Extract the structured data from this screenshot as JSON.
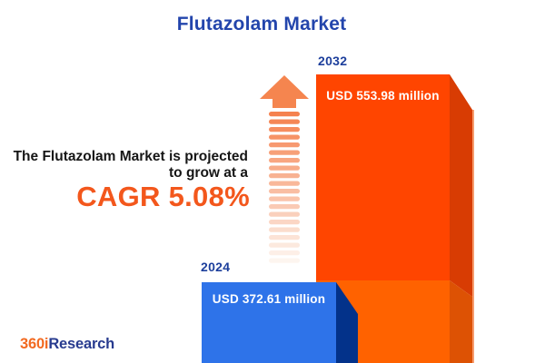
{
  "header": {
    "title": "Flutazolam Market"
  },
  "bars": {
    "y2032": {
      "year": "2032",
      "value_label": "USD 553.98 million"
    },
    "y2024": {
      "year": "2024",
      "value_label": "USD 372.61 million"
    }
  },
  "annotation": {
    "line1": "The Flutazolam Market is projected",
    "line2": "to grow at a",
    "cagr": "CAGR 5.08%"
  },
  "logo": {
    "part1": "360i",
    "part2": "Research"
  },
  "colors": {
    "title_navy": "#2345AC",
    "year_navy": "#1D3F9C",
    "annotation_dark": "#161616",
    "cagr_orange": "#F3571C",
    "bar2024_face": "#2E73E9",
    "bar2024_side": "#03328A",
    "bar2032_face_top": "#FF4500",
    "bar2032_face_bottom": "#FF6200",
    "bar2032_side_top": "#D83C03",
    "bar2032_side_bottom": "#DD5204",
    "bar2032_edge_highlight": "#F79C6E",
    "arrow_head": "#F5854F",
    "arrow_stripe_top": "#F5814E",
    "arrow_stripe_bottom": "#FDF5EF",
    "logo_orange": "#F26A21",
    "logo_navy": "#283B8F"
  },
  "chart_data": {
    "type": "bar",
    "title": "Flutazolam Market",
    "categories": [
      "2024",
      "2032"
    ],
    "values": [
      372.61,
      553.98
    ],
    "unit": "USD million",
    "value_labels": [
      "USD 372.61 million",
      "USD 553.98 million"
    ],
    "cagr_percent": 5.08,
    "annotation": "The Flutazolam Market is projected to grow at a CAGR 5.08%",
    "legend": "none",
    "grid": "off"
  }
}
